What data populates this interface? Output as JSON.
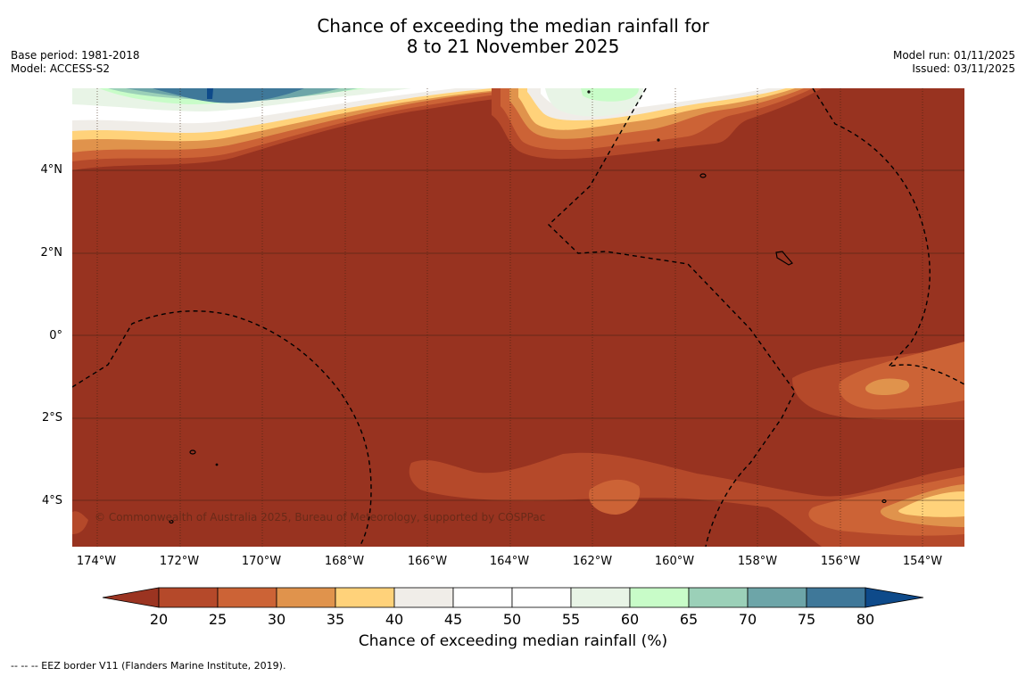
{
  "title_line1": "Chance of exceeding the median rainfall for",
  "title_line2": "8 to 21 November 2025",
  "meta_left": {
    "base_period": "Base period: 1981-2018",
    "model": "Model: ACCESS-S2"
  },
  "meta_right": {
    "model_run": "Model run: 01/11/2025",
    "issued": "Issued: 03/11/2025"
  },
  "lat_labels": [
    "4°N",
    "2°N",
    "0°",
    "2°S",
    "4°S"
  ],
  "lon_labels": [
    "174°W",
    "172°W",
    "170°W",
    "168°W",
    "166°W",
    "164°W",
    "162°W",
    "160°W",
    "158°W",
    "156°W",
    "154°W"
  ],
  "copyright": "© Commonwealth of Australia 2025, Bureau of Meteorology, supported by COSPPac",
  "colorbar": {
    "label": "Chance of exceeding median rainfall (%)",
    "ticks": [
      "20",
      "25",
      "30",
      "35",
      "40",
      "45",
      "50",
      "55",
      "60",
      "65",
      "70",
      "75",
      "80"
    ],
    "colors": [
      "#9b3421",
      "#b5492a",
      "#cc6336",
      "#e0934c",
      "#ffd27a",
      "#f0ede8",
      "#ffffff",
      "#ffffff",
      "#e8f4e6",
      "#c8fcc8",
      "#9bd0b8",
      "#6da5a8",
      "#3f7899",
      "#0e4a8a"
    ]
  },
  "footnote": "-- -- -- EEZ border V11 (Flanders Marine Institute, 2019).",
  "colors": {
    "base": "#983320"
  }
}
